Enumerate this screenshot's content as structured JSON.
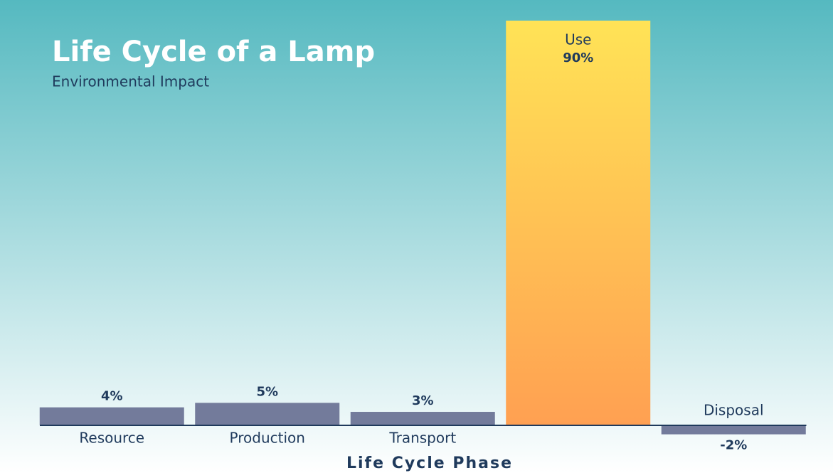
{
  "chart_data": {
    "type": "bar",
    "title": "Life Cycle of a Lamp",
    "subtitle": "Environmental Impact",
    "x_label": "Life Cycle Phase",
    "categories": [
      "Resource",
      "Production",
      "Transport",
      "Use",
      "Disposal"
    ],
    "values": [
      4,
      5,
      3,
      90,
      -2
    ],
    "value_labels": [
      "4%",
      "5%",
      "3%",
      "90%",
      "-2%"
    ],
    "colors": [
      "#737b9b",
      "#737b9b",
      "#737b9b",
      [
        "#ffe356",
        "#ffa052"
      ],
      "#737b9b"
    ],
    "ylim": [
      -10,
      90
    ]
  }
}
